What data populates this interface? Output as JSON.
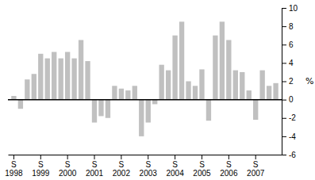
{
  "chart_data": {
    "type": "bar",
    "ylabel": "%",
    "categories": [
      "S\n1998",
      null,
      null,
      null,
      "S\n1999",
      null,
      null,
      null,
      "S\n2000",
      null,
      null,
      null,
      "S\n2001",
      null,
      null,
      null,
      "S\n2002",
      null,
      null,
      null,
      "S\n2003",
      null,
      null,
      null,
      "S\n2004",
      null,
      null,
      null,
      "S\n2005",
      null,
      null,
      null,
      "S\n2006",
      null,
      null,
      null,
      "S\n2007",
      null,
      null,
      null
    ],
    "values": [
      0.4,
      -1.0,
      2.2,
      2.8,
      5.0,
      4.5,
      5.2,
      4.5,
      5.2,
      4.5,
      6.5,
      4.2,
      -2.5,
      -1.8,
      -2.0,
      1.5,
      1.2,
      1.0,
      1.5,
      -4.0,
      -2.5,
      -0.5,
      3.8,
      3.2,
      7.0,
      8.5,
      2.0,
      1.5,
      3.3,
      -2.3,
      7.0,
      8.5,
      6.5,
      3.2,
      3.0,
      1.0,
      -2.2,
      3.2,
      1.5,
      1.8
    ],
    "color": "#c0c0c0",
    "ylim": [
      -6,
      10
    ],
    "yticks": [
      -6,
      -4,
      -2,
      0,
      2,
      4,
      6,
      8,
      10
    ],
    "grid": false
  }
}
